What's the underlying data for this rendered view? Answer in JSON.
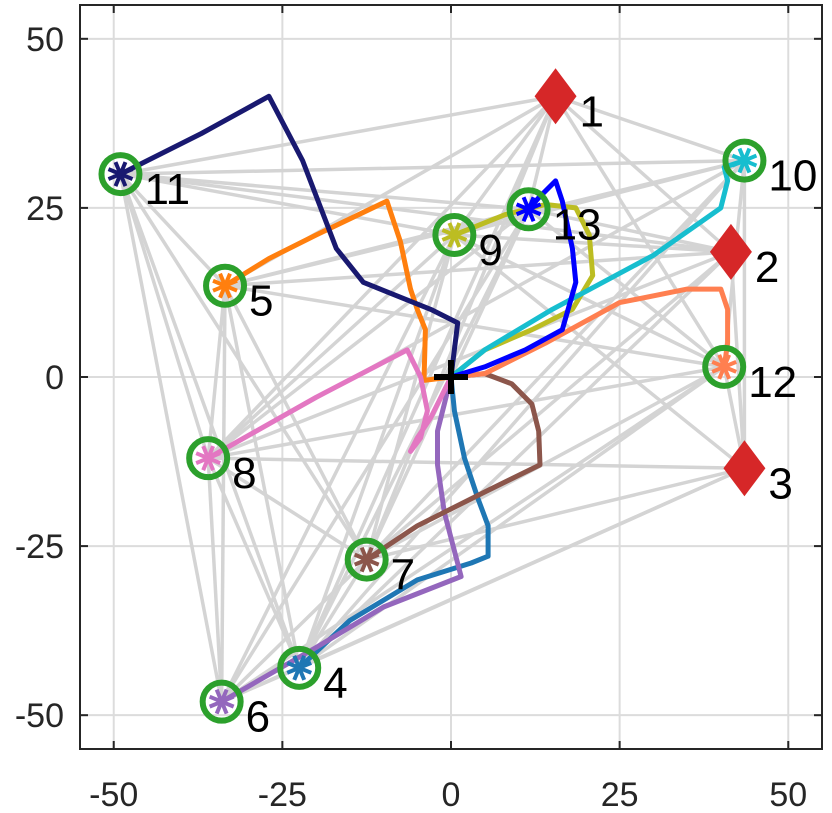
{
  "chart_data": {
    "type": "scatter",
    "title": "",
    "xlabel": "",
    "ylabel": "",
    "xlim": [
      -55,
      55
    ],
    "ylim": [
      -55,
      55
    ],
    "xticks": [
      -50,
      -25,
      0,
      25,
      50
    ],
    "yticks": [
      -50,
      -25,
      0,
      25,
      50
    ],
    "xtick_labels": [
      "-50",
      "-25",
      "0",
      "25",
      "50"
    ],
    "ytick_labels": [
      "-50",
      "-25",
      "0",
      "25",
      "50"
    ],
    "grid": true,
    "colors": {
      "grid": "#dcdcdc",
      "edge": "#d4d4d4",
      "ring": "#2ca02c",
      "target": "#d62728",
      "origin": "#000000"
    },
    "origin": {
      "x": 0,
      "y": 0,
      "marker": "plus"
    },
    "targets": [
      {
        "label": "1",
        "x": 15.5,
        "y": 41.5
      },
      {
        "label": "2",
        "x": 41.5,
        "y": 18.5
      },
      {
        "label": "3",
        "x": 43.5,
        "y": -13.5
      }
    ],
    "agents": [
      {
        "label": "4",
        "x": -22.5,
        "y": -43,
        "color": "#1f77b4"
      },
      {
        "label": "5",
        "x": -33.5,
        "y": 13.5,
        "color": "#ff7f0e"
      },
      {
        "label": "6",
        "x": -34,
        "y": -48,
        "color": "#9467bd"
      },
      {
        "label": "7",
        "x": -12.5,
        "y": -27,
        "color": "#8c564b"
      },
      {
        "label": "8",
        "x": -36,
        "y": -12,
        "color": "#e377c2"
      },
      {
        "label": "9",
        "x": 0.5,
        "y": 21,
        "color": "#bcbd22"
      },
      {
        "label": "10",
        "x": 43.5,
        "y": 32,
        "color": "#17becf"
      },
      {
        "label": "11",
        "x": -49,
        "y": 30,
        "color": "#191970"
      },
      {
        "label": "12",
        "x": 40.5,
        "y": 1.5,
        "color": "#ff7f50"
      },
      {
        "label": "13",
        "x": 11.5,
        "y": 24.8,
        "color": "#0000ff"
      }
    ],
    "series": [
      {
        "agent": "4",
        "color": "#1f77b4",
        "points": [
          [
            0,
            0
          ],
          [
            0.5,
            -5
          ],
          [
            2,
            -12
          ],
          [
            4,
            -18
          ],
          [
            5.5,
            -22
          ],
          [
            5.5,
            -26.5
          ],
          [
            3,
            -27.5
          ],
          [
            -5,
            -30
          ],
          [
            -15,
            -36
          ],
          [
            -22.5,
            -43
          ]
        ]
      },
      {
        "agent": "5",
        "color": "#ff7f0e",
        "points": [
          [
            0,
            0
          ],
          [
            -4,
            -0.5
          ],
          [
            -3.8,
            7
          ],
          [
            -5,
            10
          ],
          [
            -6,
            13
          ],
          [
            -7.5,
            20
          ],
          [
            -9.5,
            26
          ],
          [
            -20,
            21
          ],
          [
            -27,
            17.5
          ],
          [
            -33.5,
            13.5
          ]
        ]
      },
      {
        "agent": "6",
        "color": "#9467bd",
        "points": [
          [
            0,
            0
          ],
          [
            -1,
            -4
          ],
          [
            -2,
            -8
          ],
          [
            -2,
            -13
          ],
          [
            -1,
            -20
          ],
          [
            1.5,
            -29.5
          ],
          [
            -10,
            -34
          ],
          [
            -20,
            -40
          ],
          [
            -34,
            -48
          ]
        ]
      },
      {
        "agent": "7",
        "color": "#8c564b",
        "points": [
          [
            0,
            0
          ],
          [
            5,
            0.5
          ],
          [
            9,
            -1
          ],
          [
            12,
            -4
          ],
          [
            13,
            -8
          ],
          [
            13.2,
            -13
          ],
          [
            5,
            -17
          ],
          [
            -5,
            -22
          ],
          [
            -12.5,
            -27
          ]
        ]
      },
      {
        "agent": "8",
        "color": "#e377c2",
        "points": [
          [
            0,
            0
          ],
          [
            -3,
            -6
          ],
          [
            -5,
            -9
          ],
          [
            -6,
            -11
          ],
          [
            -4.5,
            -9
          ],
          [
            -3.5,
            -5
          ],
          [
            -4.5,
            0
          ],
          [
            -6.5,
            4
          ],
          [
            -20,
            -3
          ],
          [
            -36,
            -12
          ]
        ]
      },
      {
        "agent": "9",
        "color": "#bcbd22",
        "points": [
          [
            0,
            0
          ],
          [
            5,
            4
          ],
          [
            12,
            7
          ],
          [
            18,
            10
          ],
          [
            21,
            15
          ],
          [
            20.5,
            21
          ],
          [
            18.5,
            25
          ],
          [
            14,
            25.5
          ],
          [
            8,
            24
          ],
          [
            0.5,
            21
          ]
        ]
      },
      {
        "agent": "10",
        "color": "#17becf",
        "points": [
          [
            0,
            0
          ],
          [
            5,
            4
          ],
          [
            15,
            10
          ],
          [
            30,
            18
          ],
          [
            40,
            25
          ],
          [
            41,
            29
          ],
          [
            40.5,
            31
          ],
          [
            43.5,
            32
          ]
        ]
      },
      {
        "agent": "11",
        "color": "#191970",
        "points": [
          [
            0,
            0
          ],
          [
            1,
            8
          ],
          [
            -3,
            10
          ],
          [
            -13,
            14
          ],
          [
            -17,
            19
          ],
          [
            -22,
            32
          ],
          [
            -27,
            41.5
          ],
          [
            -37,
            36
          ],
          [
            -49,
            30
          ]
        ]
      },
      {
        "agent": "12",
        "color": "#ff7f50",
        "points": [
          [
            0,
            0
          ],
          [
            5,
            0.5
          ],
          [
            14,
            5
          ],
          [
            25,
            11
          ],
          [
            35,
            13
          ],
          [
            40,
            13
          ],
          [
            41,
            10
          ],
          [
            41,
            5
          ],
          [
            40.5,
            1.5
          ]
        ]
      },
      {
        "agent": "13",
        "color": "#0000ff",
        "points": [
          [
            0,
            0
          ],
          [
            5,
            1.5
          ],
          [
            11,
            4
          ],
          [
            16.5,
            7
          ],
          [
            18.5,
            14
          ],
          [
            18,
            19
          ],
          [
            16.5,
            26
          ],
          [
            15.5,
            29
          ],
          [
            13,
            26.5
          ],
          [
            11.5,
            24.8
          ]
        ]
      }
    ],
    "edges": [
      [
        [
          15.5,
          41.5
        ],
        [
          41.5,
          18.5
        ]
      ],
      [
        [
          15.5,
          41.5
        ],
        [
          43.5,
          32
        ]
      ],
      [
        [
          15.5,
          41.5
        ],
        [
          0.5,
          21
        ]
      ],
      [
        [
          15.5,
          41.5
        ],
        [
          11.5,
          24.8
        ]
      ],
      [
        [
          15.5,
          41.5
        ],
        [
          -33.5,
          13.5
        ]
      ],
      [
        [
          15.5,
          41.5
        ],
        [
          -49,
          30
        ]
      ],
      [
        [
          15.5,
          41.5
        ],
        [
          -12.5,
          -27
        ]
      ],
      [
        [
          15.5,
          41.5
        ],
        [
          -22.5,
          -43
        ]
      ],
      [
        [
          15.5,
          41.5
        ],
        [
          40.5,
          1.5
        ]
      ],
      [
        [
          15.5,
          41.5
        ],
        [
          -36,
          -12
        ]
      ],
      [
        [
          41.5,
          18.5
        ],
        [
          -33.5,
          13.5
        ]
      ],
      [
        [
          41.5,
          18.5
        ],
        [
          0.5,
          21
        ]
      ],
      [
        [
          41.5,
          18.5
        ],
        [
          -36,
          -12
        ]
      ],
      [
        [
          41.5,
          18.5
        ],
        [
          -12.5,
          -27
        ]
      ],
      [
        [
          41.5,
          18.5
        ],
        [
          -22.5,
          -43
        ]
      ],
      [
        [
          41.5,
          18.5
        ],
        [
          11.5,
          24.8
        ]
      ],
      [
        [
          41.5,
          18.5
        ],
        [
          43.5,
          -13.5
        ]
      ],
      [
        [
          41.5,
          18.5
        ],
        [
          -49,
          30
        ]
      ],
      [
        [
          43.5,
          -13.5
        ],
        [
          -34,
          -48
        ]
      ],
      [
        [
          43.5,
          -13.5
        ],
        [
          -22.5,
          -43
        ]
      ],
      [
        [
          43.5,
          -13.5
        ],
        [
          -12.5,
          -27
        ]
      ],
      [
        [
          43.5,
          -13.5
        ],
        [
          -36,
          -12
        ]
      ],
      [
        [
          43.5,
          -13.5
        ],
        [
          43.5,
          32
        ]
      ],
      [
        [
          43.5,
          -13.5
        ],
        [
          0.5,
          21
        ]
      ],
      [
        [
          43.5,
          -13.5
        ],
        [
          40.5,
          1.5
        ]
      ],
      [
        [
          -49,
          30
        ],
        [
          -36,
          -12
        ]
      ],
      [
        [
          -49,
          30
        ],
        [
          -34,
          -48
        ]
      ],
      [
        [
          -49,
          30
        ],
        [
          -22.5,
          -43
        ]
      ],
      [
        [
          -49,
          30
        ],
        [
          -12.5,
          -27
        ]
      ],
      [
        [
          -49,
          30
        ],
        [
          0.5,
          21
        ]
      ],
      [
        [
          -49,
          30
        ],
        [
          11.5,
          24.8
        ]
      ],
      [
        [
          -49,
          30
        ],
        [
          43.5,
          32
        ]
      ],
      [
        [
          -49,
          30
        ],
        [
          -33.5,
          13.5
        ]
      ],
      [
        [
          43.5,
          32
        ],
        [
          -33.5,
          13.5
        ]
      ],
      [
        [
          43.5,
          32
        ],
        [
          0.5,
          21
        ]
      ],
      [
        [
          43.5,
          32
        ],
        [
          -36,
          -12
        ]
      ],
      [
        [
          43.5,
          32
        ],
        [
          -22.5,
          -43
        ]
      ],
      [
        [
          43.5,
          32
        ],
        [
          -12.5,
          -27
        ]
      ],
      [
        [
          43.5,
          32
        ],
        [
          40.5,
          1.5
        ]
      ],
      [
        [
          40.5,
          1.5
        ],
        [
          -36,
          -12
        ]
      ],
      [
        [
          40.5,
          1.5
        ],
        [
          -34,
          -48
        ]
      ],
      [
        [
          40.5,
          1.5
        ],
        [
          -22.5,
          -43
        ]
      ],
      [
        [
          40.5,
          1.5
        ],
        [
          -12.5,
          -27
        ]
      ],
      [
        [
          40.5,
          1.5
        ],
        [
          -33.5,
          13.5
        ]
      ],
      [
        [
          40.5,
          1.5
        ],
        [
          0.5,
          21
        ]
      ],
      [
        [
          40.5,
          1.5
        ],
        [
          11.5,
          24.8
        ]
      ],
      [
        [
          -33.5,
          13.5
        ],
        [
          -36,
          -12
        ]
      ],
      [
        [
          -33.5,
          13.5
        ],
        [
          -12.5,
          -27
        ]
      ],
      [
        [
          -33.5,
          13.5
        ],
        [
          -22.5,
          -43
        ]
      ],
      [
        [
          -33.5,
          13.5
        ],
        [
          -34,
          -48
        ]
      ],
      [
        [
          -33.5,
          13.5
        ],
        [
          11.5,
          24.8
        ]
      ],
      [
        [
          -36,
          -12
        ],
        [
          -34,
          -48
        ]
      ],
      [
        [
          -36,
          -12
        ],
        [
          -22.5,
          -43
        ]
      ],
      [
        [
          -36,
          -12
        ],
        [
          -12.5,
          -27
        ]
      ],
      [
        [
          -36,
          -12
        ],
        [
          0.5,
          21
        ]
      ],
      [
        [
          -36,
          -12
        ],
        [
          11.5,
          24.8
        ]
      ],
      [
        [
          -12.5,
          -27
        ],
        [
          -22.5,
          -43
        ]
      ],
      [
        [
          -12.5,
          -27
        ],
        [
          -34,
          -48
        ]
      ],
      [
        [
          -12.5,
          -27
        ],
        [
          0.5,
          21
        ]
      ],
      [
        [
          -12.5,
          -27
        ],
        [
          11.5,
          24.8
        ]
      ],
      [
        [
          -22.5,
          -43
        ],
        [
          -34,
          -48
        ]
      ],
      [
        [
          -22.5,
          -43
        ],
        [
          0.5,
          21
        ]
      ],
      [
        [
          -22.5,
          -43
        ],
        [
          11.5,
          24.8
        ]
      ],
      [
        [
          -34,
          -48
        ],
        [
          0.5,
          21
        ]
      ],
      [
        [
          0.5,
          21
        ],
        [
          11.5,
          24.8
        ]
      ],
      [
        [
          11.5,
          24.8
        ],
        [
          -34,
          -48
        ]
      ]
    ]
  }
}
